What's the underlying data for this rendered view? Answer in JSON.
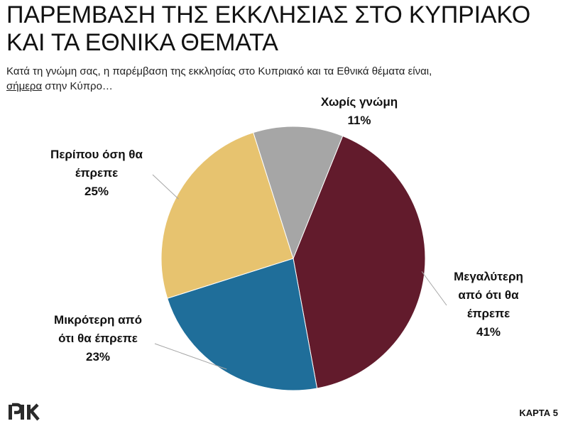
{
  "title": "ΠΑΡΕΜΒΑΣΗ ΤΗΣ ΕΚΚΛΗΣΙΑΣ ΣΤΟ ΚΥΠΡΙΑΚΟ ΚΑΙ ΤΑ ΕΘΝΙΚΑ ΘΕΜΑΤΑ",
  "subtitle": {
    "line1": "Κατά τη γνώμη σας, η παρέμβαση της εκκλησίας στο Κυπριακό και τα Εθνικά θέματα είναι,",
    "underlined": "σήμερα",
    "rest": " στην Κύπρο…"
  },
  "logo_text": "ΡΙΚ",
  "card_label": "ΚΑΡΤΑ 5",
  "chart_data": {
    "type": "pie",
    "title": "ΠΑΡΕΜΒΑΣΗ ΤΗΣ ΕΚΚΛΗΣΙΑΣ ΣΤΟ ΚΥΠΡΙΑΚΟ ΚΑΙ ΤΑ ΕΘΝΙΚΑ ΘΕΜΑΤΑ",
    "unit": "%",
    "slices": [
      {
        "label": "Μεγαλύτερη από ότι θα έπρεπε",
        "label_lines": [
          "Μεγαλύτερη",
          "από ότι θα",
          "έπρεπε"
        ],
        "value": 41,
        "value_label": "41%",
        "color": "#621b2c"
      },
      {
        "label": "Μικρότερη από ότι θα έπρεπε",
        "label_lines": [
          "Μικρότερη από",
          "ότι θα έπρεπε"
        ],
        "value": 23,
        "value_label": "23%",
        "color": "#1f6e9a"
      },
      {
        "label": "Περίπου όση θα έπρεπε",
        "label_lines": [
          "Περίπου όση θα",
          "έπρεπε"
        ],
        "value": 25,
        "value_label": "25%",
        "color": "#e7c36f"
      },
      {
        "label": "Χωρίς γνώμη",
        "label_lines": [
          "Χωρίς γνώμη"
        ],
        "value": 11,
        "value_label": "11%",
        "color": "#a6a6a6"
      }
    ],
    "start_angle_deg": 22,
    "direction": "clockwise",
    "legend": "none",
    "data_labels": "outside with leader lines"
  }
}
